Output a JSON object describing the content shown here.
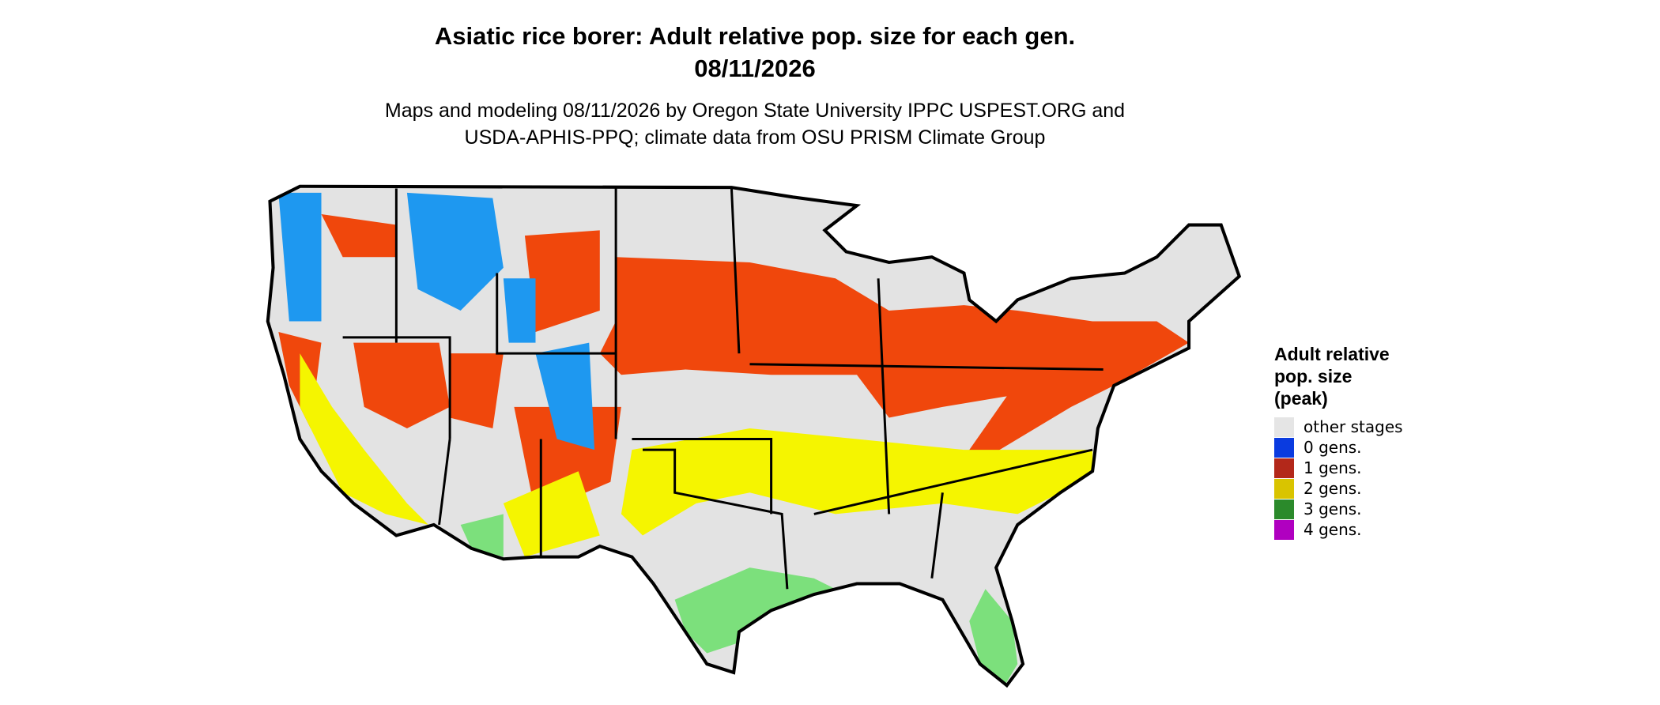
{
  "title": [
    "Asiatic rice borer: Adult relative pop. size for each gen.",
    "08/11/2026"
  ],
  "subtitle": [
    "Maps and modeling 08/11/2026 by Oregon State University IPPC USPEST.ORG and",
    "USDA-APHIS-PPQ; climate data from OSU PRISM Climate Group"
  ],
  "legend": {
    "title": [
      "Adult relative",
      "pop. size",
      "(peak)"
    ],
    "items": [
      {
        "label": "other stages",
        "color": "#e5e5e5"
      },
      {
        "label": "0 gens.",
        "color": "#0a3be0"
      },
      {
        "label": "1 gens.",
        "color": "#b3281a"
      },
      {
        "label": "2 gens.",
        "color": "#d9c400"
      },
      {
        "label": "3 gens.",
        "color": "#2b8a2b"
      },
      {
        "label": "4 gens.",
        "color": "#b000c0"
      }
    ]
  }
}
